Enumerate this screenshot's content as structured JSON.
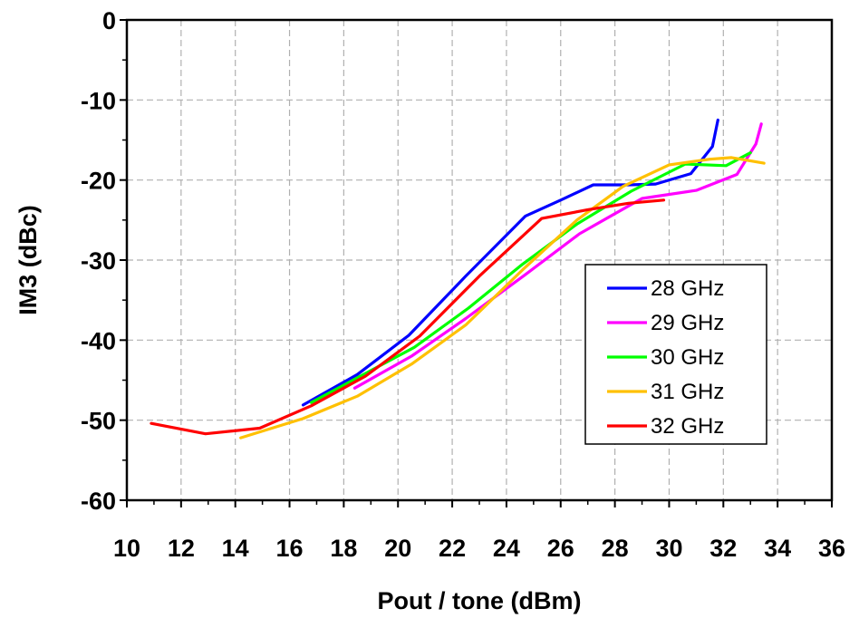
{
  "chart_data": {
    "type": "line",
    "title": "",
    "xlabel": "Pout / tone (dBm)",
    "ylabel": "IM3 (dBc)",
    "xlim": [
      10,
      36
    ],
    "ylim": [
      -60,
      0
    ],
    "x_ticks": [
      10,
      12,
      14,
      16,
      18,
      20,
      22,
      24,
      26,
      28,
      30,
      32,
      34,
      36
    ],
    "y_ticks": [
      0,
      -10,
      -20,
      -30,
      -40,
      -50,
      -60
    ],
    "grid": true,
    "legend_position": "center-right",
    "series": [
      {
        "name": "28 GHz",
        "color": "#0000ff",
        "points": [
          [
            16.5,
            -48.1
          ],
          [
            18.5,
            -44.3
          ],
          [
            20.4,
            -39.4
          ],
          [
            22.5,
            -32.0
          ],
          [
            24.7,
            -24.5
          ],
          [
            26.0,
            -22.5
          ],
          [
            27.2,
            -20.6
          ],
          [
            28.5,
            -20.6
          ],
          [
            29.5,
            -20.5
          ],
          [
            30.8,
            -19.2
          ],
          [
            31.6,
            -15.8
          ],
          [
            31.8,
            -12.5
          ]
        ]
      },
      {
        "name": "29 GHz",
        "color": "#ff00ff",
        "points": [
          [
            18.4,
            -46.0
          ],
          [
            20.5,
            -42.0
          ],
          [
            22.5,
            -37.3
          ],
          [
            24.7,
            -31.8
          ],
          [
            26.7,
            -26.7
          ],
          [
            28.0,
            -24.2
          ],
          [
            29.0,
            -22.3
          ],
          [
            31.0,
            -21.3
          ],
          [
            32.5,
            -19.3
          ],
          [
            33.2,
            -15.5
          ],
          [
            33.4,
            -13.0
          ]
        ]
      },
      {
        "name": "30 GHz",
        "color": "#00ff00",
        "points": [
          [
            16.8,
            -47.8
          ],
          [
            18.5,
            -44.7
          ],
          [
            20.6,
            -40.9
          ],
          [
            22.6,
            -36.0
          ],
          [
            24.6,
            -30.5
          ],
          [
            26.6,
            -25.5
          ],
          [
            28.6,
            -21.4
          ],
          [
            30.6,
            -18.0
          ],
          [
            32.1,
            -18.2
          ],
          [
            33.0,
            -16.6
          ]
        ]
      },
      {
        "name": "31 GHz",
        "color": "#ffc000",
        "points": [
          [
            14.2,
            -52.2
          ],
          [
            16.5,
            -49.8
          ],
          [
            18.5,
            -47.0
          ],
          [
            20.5,
            -43.0
          ],
          [
            22.5,
            -38.1
          ],
          [
            24.6,
            -31.2
          ],
          [
            26.6,
            -25.0
          ],
          [
            28.3,
            -20.8
          ],
          [
            30.0,
            -18.1
          ],
          [
            31.5,
            -17.4
          ],
          [
            32.3,
            -17.2
          ],
          [
            33.5,
            -17.9
          ]
        ]
      },
      {
        "name": "32 GHz",
        "color": "#ff0000",
        "points": [
          [
            10.9,
            -50.4
          ],
          [
            12.9,
            -51.7
          ],
          [
            14.9,
            -51.0
          ],
          [
            16.8,
            -48.2
          ],
          [
            18.8,
            -44.5
          ],
          [
            20.8,
            -39.5
          ],
          [
            23.0,
            -32.0
          ],
          [
            25.3,
            -24.8
          ],
          [
            27.0,
            -23.7
          ],
          [
            28.5,
            -22.9
          ],
          [
            29.8,
            -22.5
          ]
        ]
      }
    ]
  }
}
